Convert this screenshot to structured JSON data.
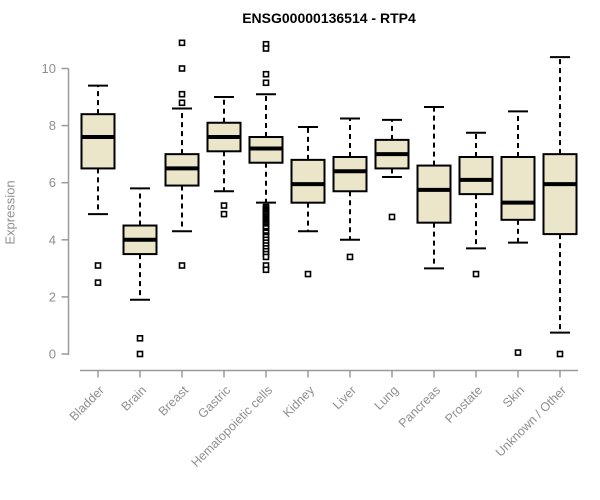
{
  "chart_data": {
    "type": "boxplot",
    "title": "ENSG00000136514 - RTP4",
    "ylabel": "Expression",
    "xlabel": "",
    "ylim": [
      0,
      10
    ],
    "yticks": [
      0,
      2,
      4,
      6,
      8,
      10
    ],
    "grid": false,
    "legend": "none",
    "categories": [
      "Bladder",
      "Brain",
      "Breast",
      "Gastric",
      "Hematopoietic cells",
      "Kidney",
      "Liver",
      "Lung",
      "Pancreas",
      "Prostate",
      "Skin",
      "Unknown / Other"
    ],
    "series": [
      {
        "name": "Bladder",
        "whisker_low": 4.9,
        "q1": 6.5,
        "median": 7.6,
        "q3": 8.4,
        "whisker_high": 9.4,
        "outliers": [
          3.1,
          2.5
        ]
      },
      {
        "name": "Brain",
        "whisker_low": 1.9,
        "q1": 3.5,
        "median": 4.0,
        "q3": 4.5,
        "whisker_high": 5.8,
        "outliers": [
          0.55,
          0.0
        ]
      },
      {
        "name": "Breast",
        "whisker_low": 4.3,
        "q1": 5.9,
        "median": 6.5,
        "q3": 7.0,
        "whisker_high": 8.6,
        "outliers": [
          10.9,
          10.0,
          9.1,
          8.8,
          3.1
        ]
      },
      {
        "name": "Gastric",
        "whisker_low": 5.7,
        "q1": 7.1,
        "median": 7.6,
        "q3": 8.1,
        "whisker_high": 9.0,
        "outliers": [
          5.2,
          4.9
        ]
      },
      {
        "name": "Hematopoietic cells",
        "whisker_low": 5.3,
        "q1": 6.7,
        "median": 7.2,
        "q3": 7.6,
        "whisker_high": 9.1,
        "outliers": [
          10.85,
          10.7,
          9.8,
          9.5,
          5.15,
          5.1,
          5.05,
          5.0,
          4.95,
          4.9,
          4.85,
          4.8,
          4.75,
          4.7,
          4.65,
          4.6,
          4.55,
          4.5,
          4.45,
          4.4,
          4.3,
          4.25,
          4.15,
          4.1,
          4.0,
          3.9,
          3.8,
          3.7,
          3.6,
          3.5,
          3.4,
          3.1,
          2.95
        ]
      },
      {
        "name": "Kidney",
        "whisker_low": 4.3,
        "q1": 5.3,
        "median": 5.95,
        "q3": 6.8,
        "whisker_high": 7.95,
        "outliers": [
          2.8
        ]
      },
      {
        "name": "Liver",
        "whisker_low": 4.0,
        "q1": 5.7,
        "median": 6.4,
        "q3": 6.9,
        "whisker_high": 8.25,
        "outliers": [
          3.4
        ]
      },
      {
        "name": "Lung",
        "whisker_low": 6.2,
        "q1": 6.5,
        "median": 7.0,
        "q3": 7.5,
        "whisker_high": 8.2,
        "outliers": [
          4.8
        ]
      },
      {
        "name": "Pancreas",
        "whisker_low": 3.0,
        "q1": 4.6,
        "median": 5.75,
        "q3": 6.6,
        "whisker_high": 8.65,
        "outliers": []
      },
      {
        "name": "Prostate",
        "whisker_low": 3.7,
        "q1": 5.6,
        "median": 6.1,
        "q3": 6.9,
        "whisker_high": 7.75,
        "outliers": [
          2.8
        ]
      },
      {
        "name": "Skin",
        "whisker_low": 3.9,
        "q1": 4.7,
        "median": 5.3,
        "q3": 6.9,
        "whisker_high": 8.5,
        "outliers": [
          0.05
        ]
      },
      {
        "name": "Unknown / Other",
        "whisker_low": 0.75,
        "q1": 4.2,
        "median": 5.95,
        "q3": 7.0,
        "whisker_high": 10.4,
        "outliers": [
          0.0
        ]
      }
    ],
    "colors": {
      "box_fill": "#ebe5c9",
      "box_stroke": "#000000",
      "median": "#000000",
      "whisker": "#000000",
      "outlier_stroke": "#000000",
      "outlier_fill": "#ffffff",
      "axis": "#9a9a9a",
      "tick_label": "#8f8f8f",
      "title": "#000000"
    }
  }
}
